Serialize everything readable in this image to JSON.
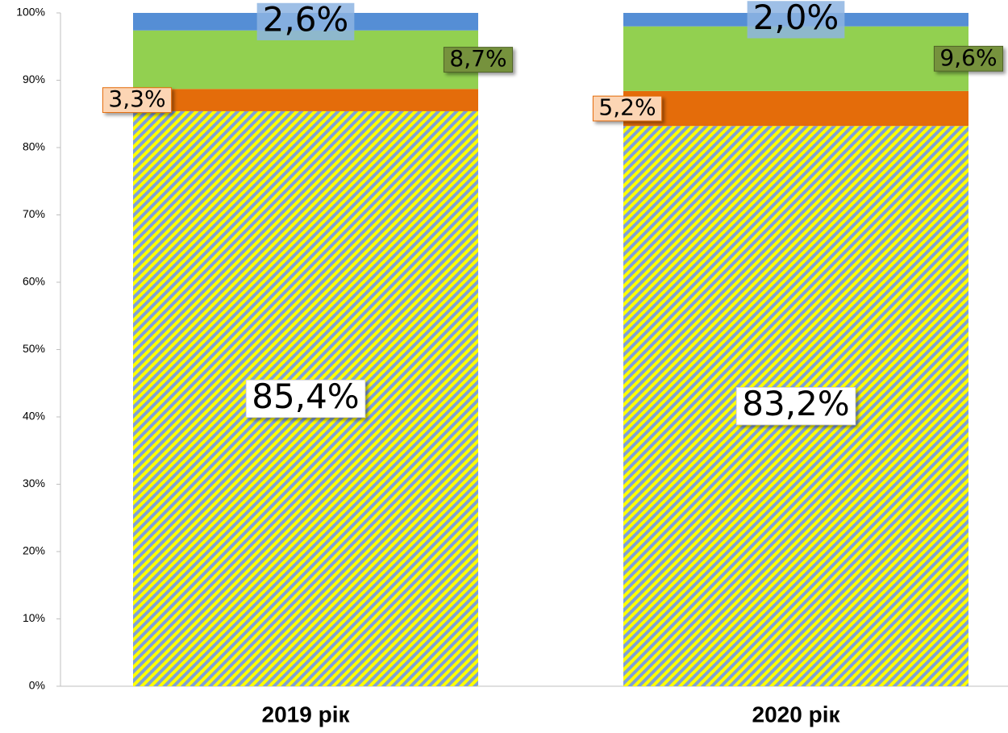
{
  "chart_data": {
    "type": "stacked_bar",
    "categories": [
      "2019 рік",
      "2020 рік"
    ],
    "series": [
      {
        "color": "#ffff00",
        "hatch_color": "#7f9fd8",
        "values": [
          85.4,
          83.2
        ],
        "value_labels": [
          "85,4%",
          "83,2%"
        ]
      },
      {
        "color": "#e46c0a",
        "values": [
          3.3,
          5.2
        ],
        "value_labels": [
          "3,3%",
          "5,2%"
        ]
      },
      {
        "color": "#92d050",
        "values": [
          8.7,
          9.6
        ],
        "value_labels": [
          "8,7%",
          "9,6%"
        ]
      },
      {
        "color": "#558ed5",
        "values": [
          2.6,
          2.0
        ],
        "value_labels": [
          "2,6%",
          "2,0%"
        ]
      }
    ],
    "ylim": [
      0,
      100
    ],
    "yticks": [
      {
        "value": 0,
        "label": "0%"
      },
      {
        "value": 10,
        "label": "10%"
      },
      {
        "value": 20,
        "label": "20%"
      },
      {
        "value": 30,
        "label": "30%"
      },
      {
        "value": 40,
        "label": "40%"
      },
      {
        "value": 50,
        "label": "50%"
      },
      {
        "value": 60,
        "label": "60%"
      },
      {
        "value": 70,
        "label": "70%"
      },
      {
        "value": 80,
        "label": "80%"
      },
      {
        "value": 90,
        "label": "90%"
      },
      {
        "value": 100,
        "label": "100%"
      }
    ]
  }
}
